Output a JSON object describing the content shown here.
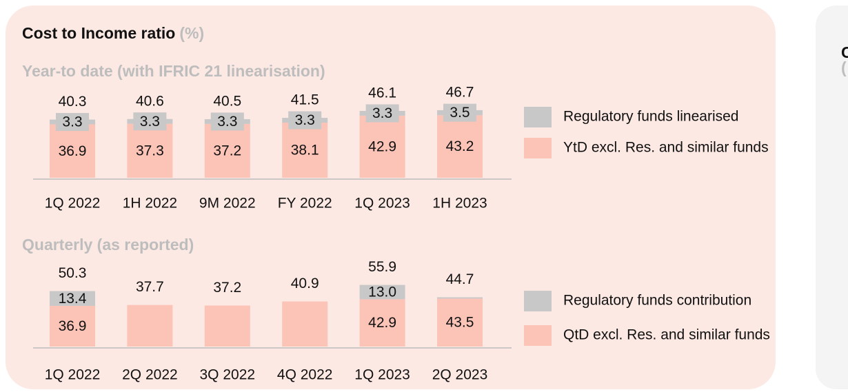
{
  "title": "Cost to Income ratio",
  "unit": "(%)",
  "side_panel": {
    "title": "C",
    "subtitle": "("
  },
  "chart_data": [
    {
      "type": "stacked_bar",
      "subtitle": "Year-to date (with IFRIC 21 linearisation)",
      "categories": [
        "1Q 2022",
        "1H 2022",
        "9M 2022",
        "FY 2022",
        "1Q 2023",
        "1H 2023"
      ],
      "series": [
        {
          "name": "YtD excl. Res. and similar funds",
          "color": "#fcc3b7",
          "values": [
            36.9,
            37.3,
            37.2,
            38.1,
            42.9,
            43.2
          ]
        },
        {
          "name": "Regulatory funds linearised",
          "color": "#c8c8c8",
          "values": [
            3.3,
            3.3,
            3.3,
            3.3,
            3.3,
            3.5
          ]
        }
      ],
      "totals": [
        40.3,
        40.6,
        40.5,
        41.5,
        46.1,
        46.7
      ],
      "ylim": [
        0,
        50
      ]
    },
    {
      "type": "stacked_bar",
      "subtitle": "Quarterly (as reported)",
      "categories": [
        "1Q 2022",
        "2Q 2022",
        "3Q 2022",
        "4Q 2022",
        "1Q 2023",
        "2Q 2023"
      ],
      "series": [
        {
          "name": "QtD excl. Res. and similar funds",
          "color": "#fcc3b7",
          "values": [
            36.9,
            37.7,
            37.2,
            40.9,
            42.9,
            43.5
          ],
          "value_labels": [
            "36.9",
            null,
            null,
            null,
            "42.9",
            "43.5"
          ]
        },
        {
          "name": "Regulatory funds contribution",
          "color": "#c8c8c8",
          "values": [
            13.4,
            0,
            0,
            0,
            13.0,
            1.2
          ],
          "value_labels": [
            "13.4",
            null,
            null,
            null,
            "13.0",
            null
          ]
        }
      ],
      "totals": [
        50.3,
        37.7,
        37.2,
        40.9,
        55.9,
        44.7
      ],
      "ylim": [
        0,
        60
      ]
    }
  ]
}
